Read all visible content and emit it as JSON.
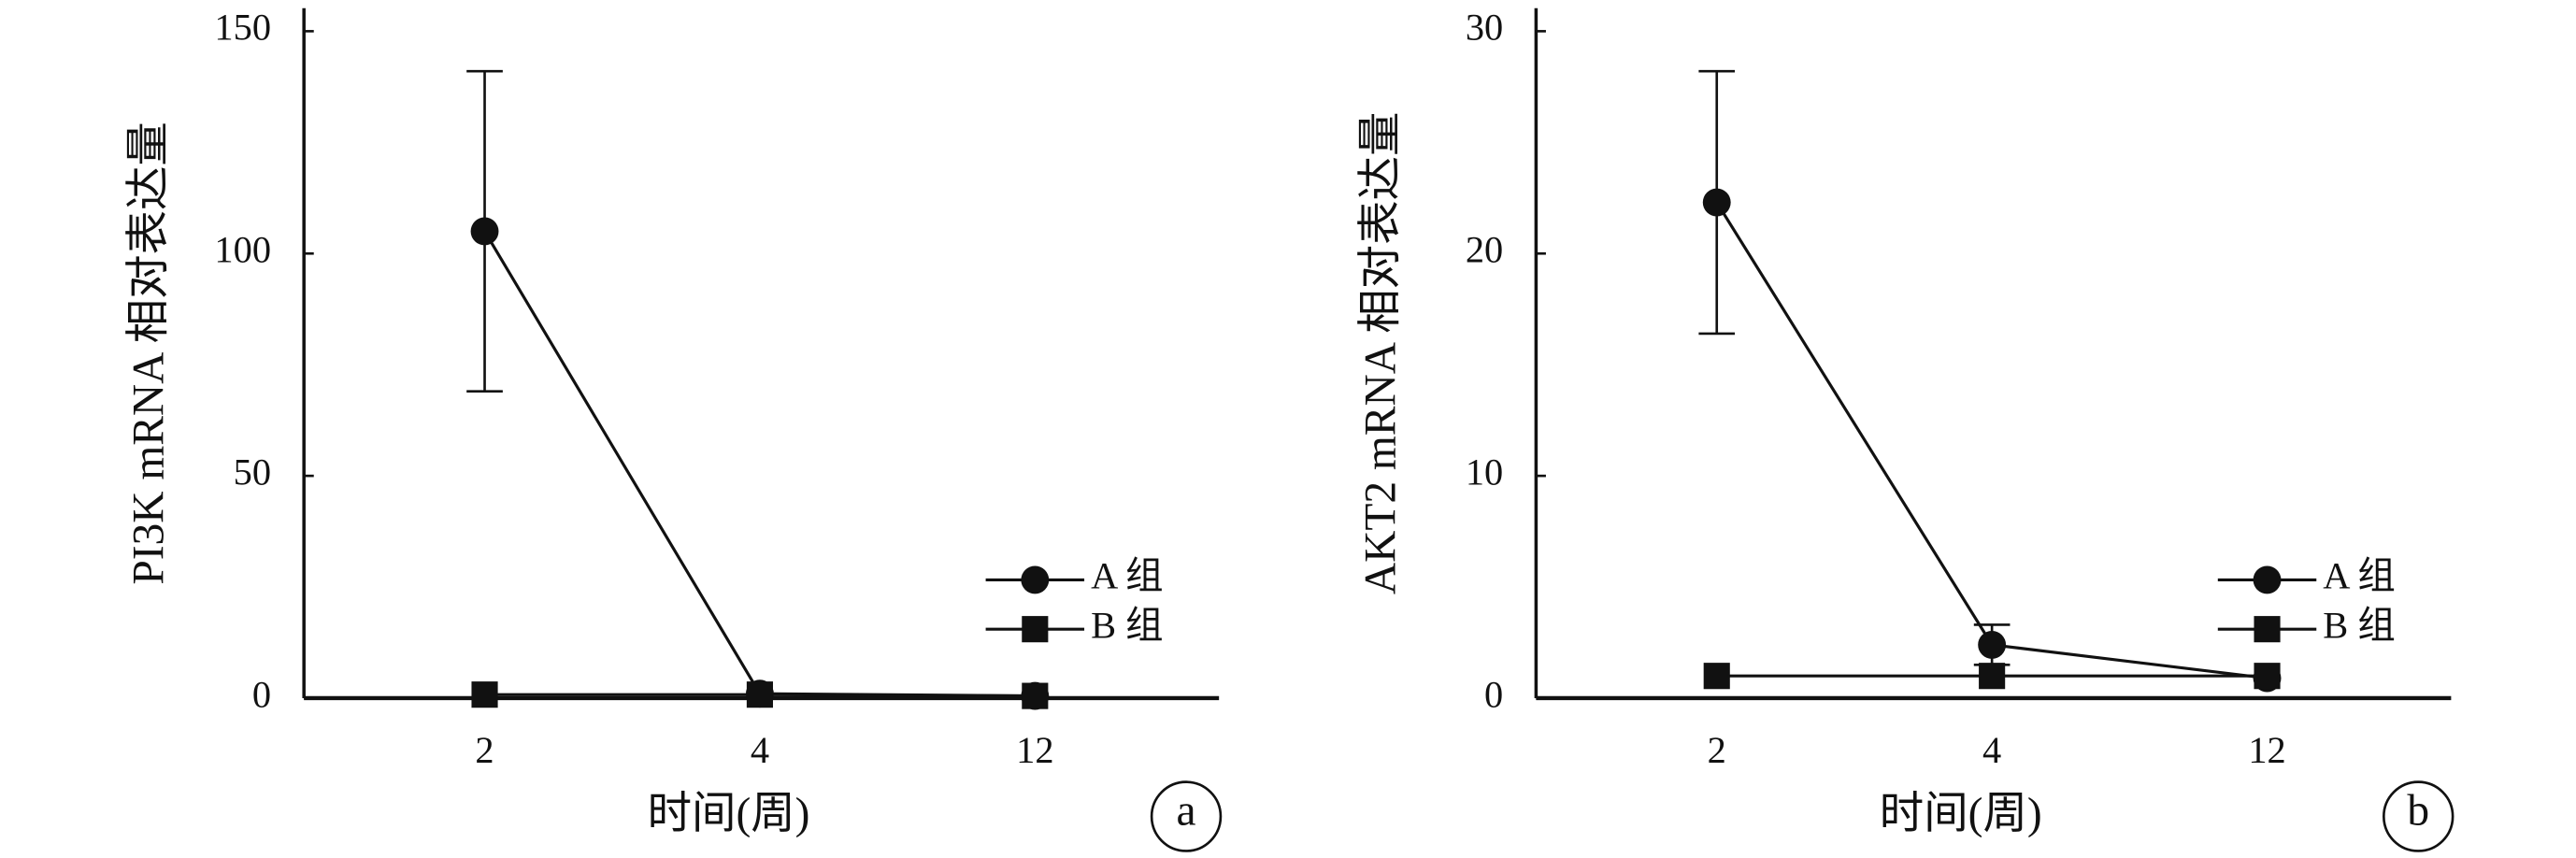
{
  "chart_data": [
    {
      "type": "line",
      "panel": "a",
      "y_label": "PI3K mRNA 相对表达量",
      "x_label": "时间(周)",
      "categories": [
        "2",
        "4",
        "12"
      ],
      "ylim": [
        0,
        150
      ],
      "yticks": [
        0,
        50,
        100,
        150
      ],
      "legend": "right",
      "series": [
        {
          "name": "A 组",
          "color": "#111111",
          "marker": "circle",
          "values": [
            105,
            1,
            0.5
          ],
          "errors": [
            36,
            0,
            0
          ]
        },
        {
          "name": "B 组",
          "color": "#111111",
          "marker": "square",
          "values": [
            0.8,
            0.8,
            0.5
          ]
        }
      ]
    },
    {
      "type": "line",
      "panel": "b",
      "y_label": "AKT2 mRNA 相对表达量",
      "x_label": "时间(周)",
      "categories": [
        "2",
        "4",
        "12"
      ],
      "ylim": [
        0,
        30
      ],
      "yticks": [
        0,
        10,
        20,
        30
      ],
      "legend": "right",
      "series": [
        {
          "name": "A 组",
          "color": "#111111",
          "marker": "circle",
          "values": [
            22.3,
            2.4,
            0.9
          ],
          "errors": [
            5.9,
            0.9,
            0
          ]
        },
        {
          "name": "B 组",
          "color": "#111111",
          "marker": "square",
          "values": [
            1.0,
            1.0,
            1.0
          ]
        }
      ]
    }
  ]
}
